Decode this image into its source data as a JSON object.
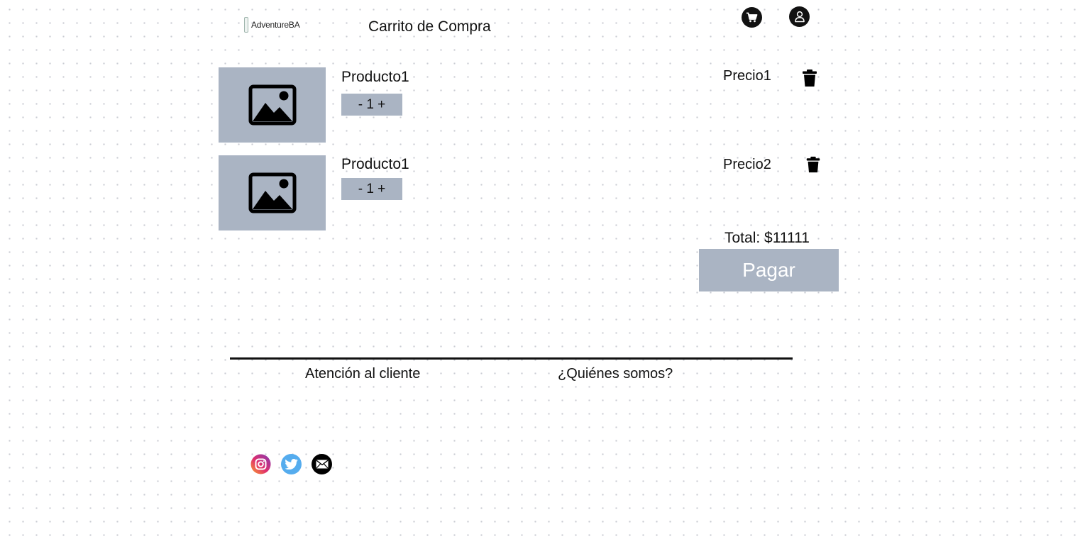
{
  "header": {
    "logo_text": "AdventureBA",
    "title": "Carrito de Compra",
    "icons": [
      "cart-icon",
      "user-icon"
    ]
  },
  "cart": {
    "items": [
      {
        "name": "Producto1",
        "quantity_label": "- 1 +",
        "price": "Precio1",
        "image_icon": "image-placeholder-icon",
        "delete_icon": "trash-icon"
      },
      {
        "name": "Producto1",
        "quantity_label": "- 1 +",
        "price": "Precio2",
        "image_icon": "image-placeholder-icon",
        "delete_icon": "trash-icon"
      }
    ],
    "total_label": "Total: $11111",
    "pay_label": "Pagar"
  },
  "footer": {
    "links": [
      "Atención al cliente",
      "¿Quiénes somos?"
    ],
    "social_icons": [
      "instagram-icon",
      "twitter-icon",
      "email-icon"
    ]
  },
  "colors": {
    "placeholder_gray": "#aab4c3",
    "icon_black": "#111111",
    "twitter_blue": "#55acee",
    "background": "#ffffff"
  }
}
